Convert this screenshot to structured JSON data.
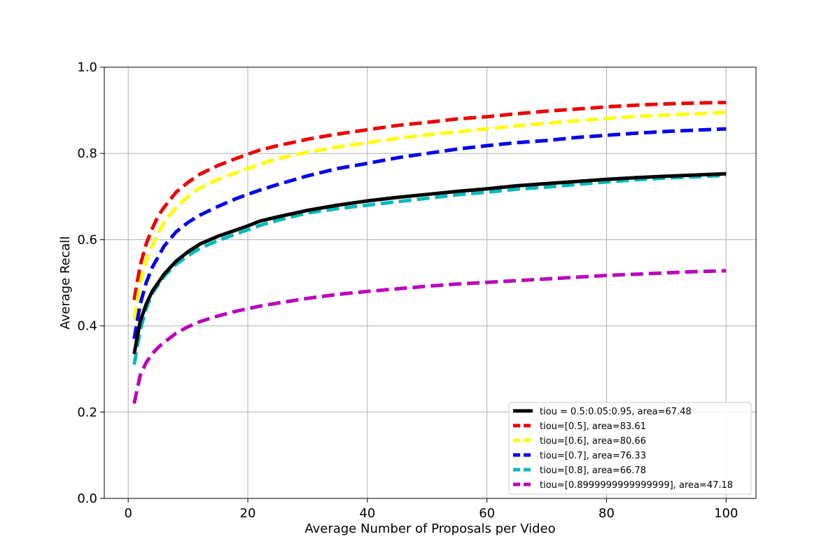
{
  "chart_data": {
    "type": "line",
    "title": "",
    "xlabel": "Average Number of Proposals per Video",
    "ylabel": "Average Recall",
    "xlim": [
      -4,
      105
    ],
    "ylim": [
      0.0,
      1.0
    ],
    "xticks": [
      0,
      20,
      40,
      60,
      80,
      100
    ],
    "yticks": [
      0.0,
      0.2,
      0.4,
      0.6,
      0.8,
      1.0
    ],
    "xtick_labels": [
      "0",
      "20",
      "40",
      "60",
      "80",
      "100"
    ],
    "ytick_labels": [
      "0.0",
      "0.2",
      "0.4",
      "0.6",
      "0.8",
      "1.0"
    ],
    "grid": true,
    "legend_position": "lower-right",
    "x": [
      1,
      2,
      3,
      4,
      5,
      6,
      8,
      10,
      12,
      15,
      18,
      20,
      22,
      25,
      30,
      35,
      40,
      45,
      50,
      55,
      60,
      65,
      70,
      75,
      80,
      85,
      90,
      95,
      100
    ],
    "series": [
      {
        "name": "tiou = 0.5:0.05:0.95, area=67.48",
        "color": "#000000",
        "style": "solid",
        "values": [
          0.335,
          0.41,
          0.45,
          0.48,
          0.5,
          0.52,
          0.55,
          0.572,
          0.59,
          0.608,
          0.622,
          0.632,
          0.643,
          0.653,
          0.668,
          0.68,
          0.69,
          0.698,
          0.705,
          0.712,
          0.718,
          0.725,
          0.73,
          0.735,
          0.74,
          0.744,
          0.747,
          0.75,
          0.753
        ]
      },
      {
        "name": "tiou=[0.5], area=83.61",
        "color": "#ee0000",
        "style": "dashed",
        "values": [
          0.46,
          0.54,
          0.59,
          0.625,
          0.655,
          0.675,
          0.71,
          0.733,
          0.752,
          0.772,
          0.788,
          0.798,
          0.808,
          0.818,
          0.833,
          0.845,
          0.855,
          0.865,
          0.872,
          0.88,
          0.885,
          0.892,
          0.898,
          0.903,
          0.908,
          0.912,
          0.915,
          0.917,
          0.918
        ]
      },
      {
        "name": "tiou=[0.6], area=80.66",
        "color": "#ffff00",
        "style": "dashed",
        "values": [
          0.415,
          0.5,
          0.55,
          0.585,
          0.615,
          0.64,
          0.675,
          0.7,
          0.72,
          0.74,
          0.755,
          0.765,
          0.775,
          0.788,
          0.803,
          0.815,
          0.825,
          0.835,
          0.843,
          0.85,
          0.857,
          0.864,
          0.87,
          0.876,
          0.881,
          0.886,
          0.889,
          0.892,
          0.895
        ]
      },
      {
        "name": "tiou=[0.7], area=76.33",
        "color": "#0000ee",
        "style": "dashed",
        "values": [
          0.37,
          0.45,
          0.5,
          0.535,
          0.56,
          0.585,
          0.618,
          0.64,
          0.657,
          0.677,
          0.695,
          0.705,
          0.715,
          0.728,
          0.748,
          0.765,
          0.777,
          0.79,
          0.8,
          0.81,
          0.818,
          0.825,
          0.83,
          0.837,
          0.842,
          0.847,
          0.851,
          0.854,
          0.857
        ]
      },
      {
        "name": "tiou=[0.8], area=66.78",
        "color": "#00bbbb",
        "style": "dashed",
        "values": [
          0.31,
          0.39,
          0.44,
          0.475,
          0.495,
          0.515,
          0.543,
          0.563,
          0.58,
          0.598,
          0.613,
          0.623,
          0.633,
          0.645,
          0.662,
          0.672,
          0.68,
          0.688,
          0.696,
          0.704,
          0.71,
          0.717,
          0.722,
          0.728,
          0.734,
          0.739,
          0.743,
          0.746,
          0.749
        ]
      },
      {
        "name": "tiou=[0.8999999999999999], area=47.18",
        "color": "#bb00bb",
        "style": "dashed",
        "values": [
          0.22,
          0.285,
          0.315,
          0.335,
          0.35,
          0.362,
          0.383,
          0.398,
          0.41,
          0.423,
          0.434,
          0.44,
          0.446,
          0.453,
          0.464,
          0.473,
          0.48,
          0.486,
          0.492,
          0.497,
          0.501,
          0.505,
          0.509,
          0.513,
          0.517,
          0.52,
          0.523,
          0.526,
          0.528
        ]
      }
    ]
  }
}
